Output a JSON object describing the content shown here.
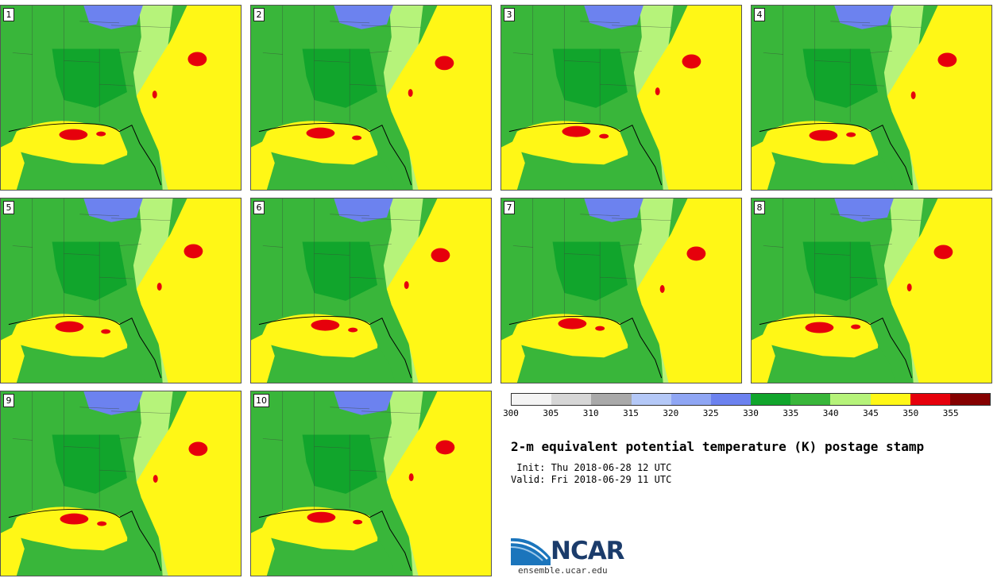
{
  "stamps": [
    {
      "label": "1"
    },
    {
      "label": "2"
    },
    {
      "label": "3"
    },
    {
      "label": "4"
    },
    {
      "label": "5"
    },
    {
      "label": "6"
    },
    {
      "label": "7"
    },
    {
      "label": "8"
    },
    {
      "label": "9"
    },
    {
      "label": "10"
    }
  ],
  "colorbar": {
    "ticks": [
      "300",
      "305",
      "310",
      "315",
      "320",
      "325",
      "330",
      "335",
      "340",
      "345",
      "350",
      "355"
    ],
    "colors": [
      "#f4f4f4",
      "#d6d6d6",
      "#a9a9a9",
      "#b4c8f7",
      "#8fa6f4",
      "#6c82ef",
      "#11a52c",
      "#39b63a",
      "#b6f37a",
      "#fff716",
      "#e6000c",
      "#850000"
    ]
  },
  "title": "2-m equivalent potential temperature (K) postage stamp",
  "init_text": " Init: Thu 2018-06-28 12 UTC",
  "valid_text": "Valid: Fri 2018-06-29 11 UTC",
  "logo": {
    "name": "NCAR",
    "url": "ensemble.ucar.edu"
  },
  "map_colors": {
    "ocean": "#b6f37a",
    "land_mid": "#39b63a",
    "land_dark": "#11a52c",
    "cool": "#6c82ef",
    "warm": "#fff716",
    "hot": "#e6000c",
    "border": "#000000"
  }
}
